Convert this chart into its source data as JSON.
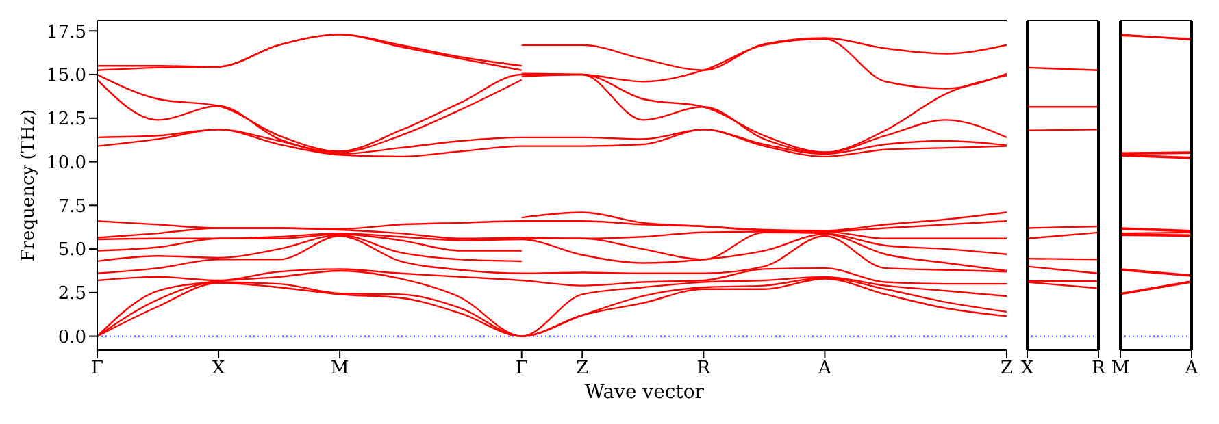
{
  "chart_data": [
    {
      "type": "line",
      "xlabel": "Wave vector",
      "ylabel": "Frequency (THz)",
      "categories": [
        "Γ",
        null,
        "X",
        null,
        "M",
        null,
        null,
        "Γ",
        "Z",
        null,
        "R",
        null,
        "A",
        null,
        null,
        "Z"
      ],
      "ylim": [
        -0.8,
        18.1
      ],
      "yticks": [
        {
          "value": 0,
          "label": "0.0"
        },
        {
          "value": 2.5,
          "label": "2.5"
        },
        {
          "value": 5,
          "label": "5.0"
        },
        {
          "value": 7.5,
          "label": "7.5"
        },
        {
          "value": 10,
          "label": "10.0"
        },
        {
          "value": 12.5,
          "label": "12.5"
        },
        {
          "value": 15,
          "label": "15.0"
        },
        {
          "value": 17.5,
          "label": "17.5"
        }
      ],
      "ref_lines": [
        {
          "axis": "y",
          "value": 0,
          "color": "#0000ff",
          "line_style": "dotted"
        }
      ],
      "series": [
        {
          "color": "#ff0000",
          "values": [
            0,
            1.7,
            3.05,
            2.8,
            2.4,
            2.2,
            1.3,
            0,
            1.2,
            1.9,
            2.7,
            2.7,
            3.3,
            2.4,
            1.6,
            1.15
          ]
        },
        {
          "color": "#ff0000",
          "values": [
            0,
            2.1,
            3.1,
            3.0,
            2.45,
            2.4,
            1.6,
            0,
            1.2,
            2.3,
            2.8,
            2.9,
            3.35,
            2.7,
            1.95,
            1.4
          ]
        },
        {
          "color": "#ff0000",
          "values": [
            0,
            2.6,
            3.15,
            3.4,
            3.75,
            3.3,
            2.2,
            0,
            2.4,
            2.8,
            3.1,
            3.2,
            3.4,
            2.9,
            2.6,
            2.3
          ]
        },
        {
          "color": "#ff0000",
          "values": [
            3.2,
            3.4,
            3.2,
            3.7,
            3.85,
            3.6,
            3.4,
            3.2,
            2.9,
            3.1,
            3.2,
            3.85,
            3.9,
            3.1,
            3.0,
            3.0
          ]
        },
        {
          "color": "#ff0000",
          "values": [
            3.6,
            3.9,
            4.4,
            4.4,
            5.75,
            4.3,
            3.8,
            3.6,
            3.65,
            3.6,
            3.6,
            4.0,
            5.75,
            3.9,
            3.8,
            3.7
          ]
        },
        {
          "color": "#ff0000",
          "values": [
            4.3,
            4.6,
            4.5,
            5.0,
            5.8,
            4.8,
            4.4,
            4.3,
            null,
            null,
            null,
            null,
            null,
            null,
            null,
            null
          ]
        },
        {
          "color": "#ff0000",
          "values": [
            4.9,
            5.1,
            5.6,
            5.6,
            5.85,
            5.5,
            4.9,
            4.9,
            null,
            null,
            null,
            null,
            null,
            null,
            null,
            null
          ]
        },
        {
          "color": "#ff0000",
          "values": [
            5.55,
            5.6,
            5.6,
            5.7,
            5.9,
            5.7,
            5.5,
            5.55,
            4.66,
            4.2,
            4.4,
            4.9,
            5.85,
            4.7,
            4.2,
            3.75
          ]
        },
        {
          "color": "#ff0000",
          "values": [
            5.65,
            5.9,
            6.2,
            6.2,
            6.1,
            5.9,
            5.6,
            5.65,
            5.6,
            5.7,
            5.96,
            6.0,
            6.0,
            5.6,
            5.6,
            5.6
          ]
        },
        {
          "color": "#ff0000",
          "values": [
            6.6,
            6.4,
            6.2,
            6.2,
            6.15,
            6.4,
            6.5,
            6.6,
            6.6,
            6.4,
            6.3,
            6.05,
            6.0,
            6.2,
            6.4,
            6.6
          ]
        },
        {
          "color": "#ff0000",
          "values": [
            null,
            null,
            null,
            null,
            null,
            null,
            null,
            5.6,
            5.6,
            5.0,
            4.4,
            5.95,
            5.9,
            5.2,
            5.0,
            4.7
          ]
        },
        {
          "color": "#ff0000",
          "values": [
            null,
            null,
            null,
            null,
            null,
            null,
            null,
            6.8,
            7.1,
            6.5,
            6.3,
            6.1,
            6.05,
            6.4,
            6.7,
            7.1
          ]
        },
        {
          "color": "#ff0000",
          "values": [
            10.9,
            11.3,
            11.85,
            11.0,
            10.4,
            10.3,
            10.6,
            10.9,
            10.9,
            11.0,
            11.85,
            10.9,
            10.3,
            10.7,
            10.8,
            10.9
          ]
        },
        {
          "color": "#ff0000",
          "values": [
            11.4,
            11.5,
            11.85,
            11.2,
            10.45,
            10.8,
            11.2,
            11.4,
            11.4,
            11.3,
            11.85,
            11.0,
            10.45,
            11.0,
            11.2,
            10.95
          ]
        },
        {
          "color": "#ff0000",
          "values": [
            14.7,
            12.4,
            13.2,
            11.3,
            10.55,
            11.5,
            13.0,
            14.7,
            null,
            null,
            null,
            null,
            null,
            null,
            null,
            null
          ]
        },
        {
          "color": "#ff0000",
          "values": [
            15.0,
            13.6,
            13.2,
            11.5,
            10.6,
            11.8,
            13.4,
            15.0,
            15.0,
            13.6,
            13.15,
            11.5,
            10.55,
            11.8,
            13.9,
            14.95
          ]
        },
        {
          "color": "#ff0000",
          "values": [
            15.25,
            15.4,
            15.45,
            16.7,
            17.3,
            16.6,
            15.9,
            15.25,
            null,
            null,
            null,
            null,
            null,
            null,
            null,
            null
          ]
        },
        {
          "color": "#ff0000",
          "values": [
            15.5,
            15.5,
            15.45,
            16.7,
            17.3,
            16.7,
            16.0,
            15.5,
            null,
            null,
            null,
            null,
            null,
            null,
            null,
            null
          ]
        },
        {
          "color": "#ff0000",
          "values": [
            null,
            null,
            null,
            null,
            null,
            null,
            null,
            14.9,
            15.0,
            12.4,
            13.15,
            11.3,
            10.5,
            11.5,
            12.4,
            11.4
          ]
        },
        {
          "color": "#ff0000",
          "values": [
            null,
            null,
            null,
            null,
            null,
            null,
            null,
            15.05,
            15.0,
            14.6,
            15.25,
            16.7,
            17.05,
            14.6,
            14.2,
            15.05
          ]
        },
        {
          "color": "#ff0000",
          "values": [
            null,
            null,
            null,
            null,
            null,
            null,
            null,
            16.7,
            16.7,
            15.9,
            15.25,
            16.75,
            17.1,
            16.5,
            16.2,
            16.7
          ]
        }
      ]
    },
    {
      "type": "line",
      "categories": [
        "X",
        "R"
      ],
      "ylim": [
        -0.8,
        18.1
      ],
      "tick_labels": "x",
      "ref_lines": [
        {
          "axis": "y",
          "value": 0,
          "color": "#0000ff",
          "line_style": "dotted"
        }
      ],
      "series": [
        {
          "color": "#ff0000",
          "values": [
            3.1,
            2.75
          ]
        },
        {
          "color": "#ff0000",
          "values": [
            3.15,
            3.15
          ]
        },
        {
          "color": "#ff0000",
          "values": [
            4.0,
            3.6
          ]
        },
        {
          "color": "#ff0000",
          "values": [
            4.45,
            4.4
          ]
        },
        {
          "color": "#ff0000",
          "values": [
            5.6,
            5.95
          ]
        },
        {
          "color": "#ff0000",
          "values": [
            6.2,
            6.3
          ]
        },
        {
          "color": "#ff0000",
          "values": [
            11.8,
            11.85
          ]
        },
        {
          "color": "#ff0000",
          "values": [
            13.15,
            13.15
          ]
        },
        {
          "color": "#ff0000",
          "values": [
            15.4,
            15.25
          ]
        }
      ]
    },
    {
      "type": "line",
      "categories": [
        "M",
        "A"
      ],
      "ylim": [
        -0.8,
        18.1
      ],
      "tick_labels": "x",
      "ref_lines": [
        {
          "axis": "y",
          "value": 0,
          "color": "#0000ff",
          "line_style": "dotted"
        }
      ],
      "series": [
        {
          "color": "#ff0000",
          "values": [
            2.4,
            3.1
          ]
        },
        {
          "color": "#ff0000",
          "values": [
            2.45,
            3.15
          ]
        },
        {
          "color": "#ff0000",
          "values": [
            3.8,
            3.45
          ]
        },
        {
          "color": "#ff0000",
          "values": [
            3.85,
            3.5
          ]
        },
        {
          "color": "#ff0000",
          "values": [
            5.8,
            5.75
          ]
        },
        {
          "color": "#ff0000",
          "values": [
            5.85,
            5.8
          ]
        },
        {
          "color": "#ff0000",
          "values": [
            5.9,
            5.95
          ]
        },
        {
          "color": "#ff0000",
          "values": [
            6.15,
            6.0
          ]
        },
        {
          "color": "#ff0000",
          "values": [
            6.2,
            6.05
          ]
        },
        {
          "color": "#ff0000",
          "values": [
            10.35,
            10.2
          ]
        },
        {
          "color": "#ff0000",
          "values": [
            10.4,
            10.25
          ]
        },
        {
          "color": "#ff0000",
          "values": [
            10.45,
            10.5
          ]
        },
        {
          "color": "#ff0000",
          "values": [
            10.5,
            10.55
          ]
        },
        {
          "color": "#ff0000",
          "values": [
            17.3,
            17.0
          ]
        },
        {
          "color": "#ff0000",
          "values": [
            17.25,
            17.05
          ]
        }
      ]
    }
  ]
}
